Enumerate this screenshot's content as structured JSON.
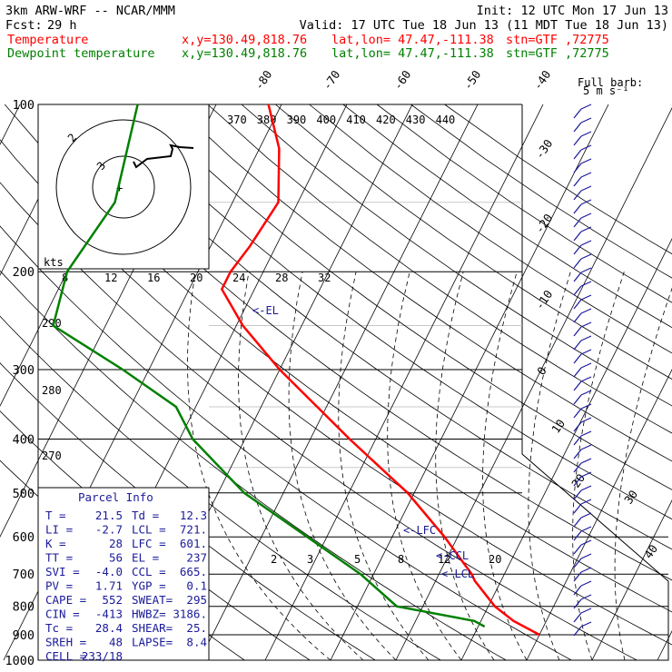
{
  "header": {
    "model": "3km ARW-WRF -- NCAR/MMM",
    "init": "Init: 12 UTC Mon 17 Jun 13",
    "fcst_label": "Fcst:",
    "fcst_value": "29 h",
    "valid": "Valid: 17 UTC Tue 18 Jun 13 (11 MDT Tue 18 Jun 13)",
    "temperature_label": "Temperature",
    "dewpoint_label": "Dewpoint temperature",
    "xy": "x,y=130.49,818.76",
    "latlon": "lat,lon= 47.47,-111.38",
    "stn": "stn=GTF ,72775",
    "temp_color": "#ff0000",
    "dew_color": "#008000"
  },
  "full_barb": {
    "line1": "Full barb:",
    "line2": "5 m s⁻¹"
  },
  "hodograph": {
    "unit": "kts",
    "ring_labels": [
      "2",
      "3"
    ]
  },
  "parcel_info": {
    "title": "Parcel Info",
    "rows": [
      [
        "T  =",
        "21.5",
        "Td  =",
        "12.3"
      ],
      [
        "LI =",
        "-2.7",
        "LCL =",
        "721."
      ],
      [
        "K  =",
        "28",
        "LFC =",
        "601."
      ],
      [
        "TT =",
        "56",
        "EL  =",
        "237"
      ],
      [
        "SVI =",
        "-4.0",
        "CCL =",
        "665."
      ],
      [
        "PV =",
        "1.71",
        "YGP =",
        "0.1"
      ],
      [
        "CAPE =",
        "552",
        "SWEAT=",
        "295"
      ],
      [
        "CIN =",
        "-413",
        "HWBZ=",
        "3186."
      ],
      [
        "Tc =",
        "28.4",
        "SHEAR=",
        "25."
      ],
      [
        "SREH =",
        "48",
        "LAPSE=",
        "8.4"
      ],
      [
        "CELL =",
        "233/18",
        "",
        ""
      ]
    ]
  },
  "annotations": {
    "el": "<-EL",
    "lfc": "<-LFC",
    "ccl": "<-CCL",
    "lcl": "<-LCL"
  },
  "chart_data": {
    "type": "line",
    "diagram": "skew-T log-p",
    "pressure_levels": [
      "100",
      "200",
      "300",
      "400",
      "500",
      "600",
      "700",
      "800",
      "900",
      "1000"
    ],
    "isotherm_labels": [
      "-80",
      "-70",
      "-60",
      "-50",
      "-40",
      "-30",
      "-20",
      "-10",
      "0",
      "10",
      "20",
      "30",
      "40"
    ],
    "theta_labels_top": [
      "370",
      "380",
      "390",
      "400",
      "410",
      "420",
      "430",
      "440"
    ],
    "theta_labels_left": [
      "290",
      "280",
      "270"
    ],
    "mixing_ratio_labels_upper": [
      "8",
      "12",
      "16",
      "20",
      "24",
      "28",
      "32"
    ],
    "mixing_ratio_labels_lower": [
      "2",
      "3",
      "5",
      "8",
      "12",
      "20"
    ],
    "series": [
      {
        "name": "Temperature",
        "points": [
          [
            100,
            -62
          ],
          [
            120,
            -57
          ],
          [
            150,
            -53
          ],
          [
            180,
            -54
          ],
          [
            200,
            -55
          ],
          [
            215,
            -55
          ],
          [
            250,
            -49
          ],
          [
            300,
            -40
          ],
          [
            400,
            -24
          ],
          [
            500,
            -11
          ],
          [
            600,
            -2
          ],
          [
            700,
            5
          ],
          [
            720,
            6
          ],
          [
            800,
            11
          ],
          [
            850,
            15
          ],
          [
            900,
            20
          ]
        ]
      },
      {
        "name": "Dewpoint temperature",
        "points": [
          [
            100,
            -82
          ],
          [
            150,
            -78
          ],
          [
            200,
            -80
          ],
          [
            250,
            -78
          ],
          [
            300,
            -64
          ],
          [
            350,
            -53
          ],
          [
            400,
            -48
          ],
          [
            500,
            -36
          ],
          [
            600,
            -23
          ],
          [
            700,
            -12
          ],
          [
            800,
            -4
          ],
          [
            850,
            9
          ],
          [
            870,
            11
          ]
        ]
      }
    ]
  }
}
